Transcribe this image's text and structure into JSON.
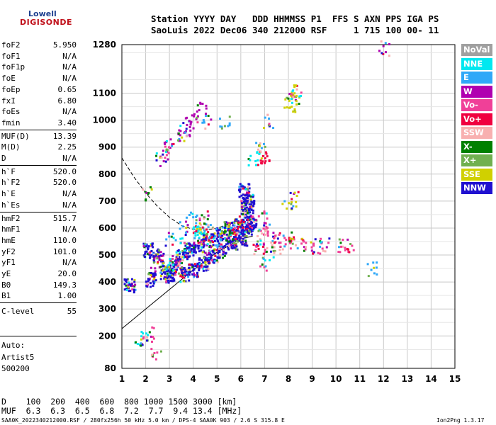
{
  "logo": {
    "top": "Lowell",
    "bottom": "DIGISONDE"
  },
  "header": {
    "line1": "Station YYYY DAY   DDD HHMMSS P1  FFS S AXN PPS IGA PS",
    "line2": "SaoLuis 2022 Dec06 340 212000 RSF     1 715 100 00- 11"
  },
  "scaled_params": [
    {
      "name": "foF2",
      "value": "5.950"
    },
    {
      "name": "foF1",
      "value": "N/A"
    },
    {
      "name": "foF1p",
      "value": "N/A"
    },
    {
      "name": "foE",
      "value": "N/A"
    },
    {
      "name": "foEp",
      "value": "0.65"
    },
    {
      "name": "fxI",
      "value": "6.80"
    },
    {
      "name": "foEs",
      "value": "N/A"
    },
    {
      "name": "fmin",
      "value": "3.40"
    },
    {
      "name": "MUF(D)",
      "value": "13.39"
    },
    {
      "name": "M(D)",
      "value": "2.25"
    },
    {
      "name": "D",
      "value": "N/A"
    },
    {
      "name": "h`F",
      "value": "520.0"
    },
    {
      "name": "h`F2",
      "value": "520.0"
    },
    {
      "name": "h`E",
      "value": "N/A"
    },
    {
      "name": "h`Es",
      "value": "N/A"
    },
    {
      "name": "hmF2",
      "value": "515.7"
    },
    {
      "name": "hmF1",
      "value": "N/A"
    },
    {
      "name": "hmE",
      "value": "110.0"
    },
    {
      "name": "yF2",
      "value": "101.0"
    },
    {
      "name": "yF1",
      "value": "N/A"
    },
    {
      "name": "yE",
      "value": "20.0"
    },
    {
      "name": "B0",
      "value": "149.3"
    },
    {
      "name": "B1",
      "value": "1.00"
    },
    {
      "name": "C-level",
      "value": "55"
    }
  ],
  "autoscaling": {
    "line1": "Auto:",
    "line2": "Artist5",
    "line3": "500200"
  },
  "legend": [
    {
      "label": "NoVal",
      "color": "#a0a0a0"
    },
    {
      "label": "NNE",
      "color": "#00e8f0"
    },
    {
      "label": "E",
      "color": "#30a8f8"
    },
    {
      "label": "W",
      "color": "#b000b0"
    },
    {
      "label": "Vo-",
      "color": "#f04098"
    },
    {
      "label": "Vo+",
      "color": "#f00040"
    },
    {
      "label": "SSW",
      "color": "#f8b0b0"
    },
    {
      "label": "X-",
      "color": "#008000"
    },
    {
      "label": "X+",
      "color": "#70b050"
    },
    {
      "label": "SSE",
      "color": "#d0d000"
    },
    {
      "label": "NNW",
      "color": "#2010d0"
    }
  ],
  "muf_table": {
    "line1": "D    100  200  400  600  800 1000 1500 3000 [km]",
    "line2": "MUF  6.3  6.3  6.5  6.8  7.2  7.7  9.4 13.4 [MHz]"
  },
  "footer": {
    "left": "SAA0K_2022340212000.RSF / 280fx256h 50 kHz 5.0 km / DPS-4 SAA0K 903 / 2.6 S 315.8 E",
    "right": "Ion2Png 1.3.17"
  },
  "chart_data": {
    "type": "scatter",
    "title": "",
    "xlabel": "",
    "ylabel": "",
    "xlim": [
      1,
      15
    ],
    "ylim": [
      80,
      1280
    ],
    "x_ticks": [
      1,
      2,
      3,
      4,
      5,
      6,
      7,
      8,
      9,
      10,
      11,
      12,
      13,
      14,
      15
    ],
    "y_ticks": [
      80,
      200,
      300,
      400,
      500,
      600,
      700,
      800,
      900,
      1000,
      1100,
      1280
    ],
    "grid": true,
    "series": [
      {
        "color": "#2010d0",
        "points": [
          [
            1.3,
            390
          ],
          [
            2.2,
            410
          ],
          [
            2.8,
            440
          ],
          [
            3.2,
            470
          ],
          [
            3.5,
            500
          ],
          [
            3.8,
            520
          ],
          [
            4.2,
            540
          ],
          [
            4.6,
            560
          ],
          [
            5.0,
            580
          ],
          [
            5.5,
            600
          ],
          [
            5.9,
            610
          ],
          [
            3.0,
            420
          ],
          [
            3.6,
            430
          ],
          [
            4.0,
            450
          ],
          [
            4.4,
            470
          ],
          [
            4.8,
            500
          ],
          [
            5.2,
            520
          ],
          [
            5.6,
            550
          ],
          [
            6.0,
            560
          ],
          [
            6.2,
            680
          ],
          [
            6.3,
            650
          ],
          [
            6.1,
            740
          ],
          [
            6.4,
            620
          ],
          [
            2.5,
            500
          ],
          [
            2.1,
            520
          ],
          [
            6.2,
            600
          ],
          [
            6.3,
            700
          ]
        ]
      },
      {
        "color": "#b000b0",
        "points": [
          [
            2.6,
            860
          ],
          [
            2.9,
            900
          ],
          [
            3.2,
            930
          ],
          [
            3.6,
            970
          ],
          [
            4.0,
            1010
          ],
          [
            4.3,
            1050
          ],
          [
            3.4,
            950
          ],
          [
            3.8,
            990
          ],
          [
            12.0,
            1270
          ],
          [
            2.4,
            470
          ],
          [
            3.3,
            480
          ],
          [
            4.5,
            520
          ]
        ]
      },
      {
        "color": "#30a8f8",
        "points": [
          [
            3.0,
            560
          ],
          [
            3.5,
            600
          ],
          [
            3.9,
            640
          ],
          [
            4.3,
            610
          ],
          [
            4.7,
            590
          ],
          [
            5.1,
            560
          ],
          [
            4.5,
            1000
          ],
          [
            5.3,
            1000
          ],
          [
            6.8,
            900
          ],
          [
            7.1,
            1000
          ],
          [
            11.5,
            450
          ]
        ]
      },
      {
        "color": "#f04098",
        "points": [
          [
            6.9,
            640
          ],
          [
            7.0,
            600
          ],
          [
            7.3,
            580
          ],
          [
            7.6,
            560
          ],
          [
            8.0,
            550
          ],
          [
            8.4,
            540
          ],
          [
            8.8,
            540
          ],
          [
            9.2,
            535
          ],
          [
            9.5,
            540
          ],
          [
            10.2,
            535
          ],
          [
            10.5,
            535
          ],
          [
            6.8,
            520
          ],
          [
            7.0,
            470
          ],
          [
            2.2,
            210
          ],
          [
            2.4,
            130
          ],
          [
            2.8,
            880
          ]
        ]
      },
      {
        "color": "#f00040",
        "points": [
          [
            4.2,
            590
          ],
          [
            4.6,
            570
          ],
          [
            5.6,
            590
          ],
          [
            5.9,
            620
          ],
          [
            6.7,
            530
          ],
          [
            6.9,
            860
          ],
          [
            7.0,
            860
          ],
          [
            8.0,
            580
          ],
          [
            3.4,
            440
          ]
        ]
      },
      {
        "color": "#d0d000",
        "points": [
          [
            8.0,
            1075
          ],
          [
            8.2,
            1090
          ],
          [
            8.3,
            1110
          ],
          [
            8.1,
            1060
          ],
          [
            7.9,
            690
          ],
          [
            8.2,
            710
          ],
          [
            4.2,
            580
          ],
          [
            5.3,
            600
          ]
        ]
      },
      {
        "color": "#008000",
        "points": [
          [
            4.4,
            640
          ],
          [
            2.0,
            730
          ],
          [
            5.4,
            570
          ]
        ]
      },
      {
        "color": "#00e8f0",
        "points": [
          [
            2.9,
            470
          ],
          [
            3.4,
            540
          ],
          [
            4.1,
            590
          ],
          [
            1.7,
            190
          ],
          [
            1.9,
            195
          ],
          [
            6.5,
            860
          ],
          [
            8.3,
            1095
          ]
        ]
      },
      {
        "color": "#f8b0b0",
        "points": [
          [
            6.8,
            580
          ],
          [
            7.2,
            540
          ],
          [
            7.5,
            520
          ]
        ]
      }
    ],
    "line_series": [
      {
        "style": "solid",
        "points": [
          [
            1.0,
            227
          ],
          [
            2.0,
            300
          ],
          [
            3.0,
            372
          ],
          [
            4.0,
            445
          ],
          [
            5.0,
            510
          ],
          [
            6.0,
            560
          ],
          [
            6.5,
            570
          ]
        ]
      },
      {
        "style": "dashed",
        "points": [
          [
            1.0,
            860
          ],
          [
            1.5,
            790
          ],
          [
            2.0,
            730
          ],
          [
            2.5,
            680
          ],
          [
            3.0,
            640
          ],
          [
            3.5,
            610
          ],
          [
            4.0,
            595
          ],
          [
            4.5,
            592
          ],
          [
            5.0,
            600
          ],
          [
            5.5,
            615
          ],
          [
            6.0,
            630
          ]
        ]
      }
    ]
  }
}
